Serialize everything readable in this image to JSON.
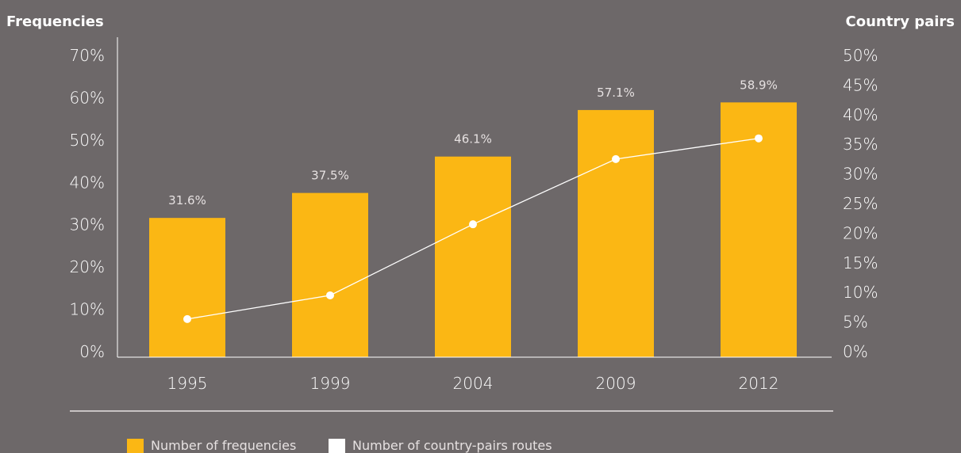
{
  "chart_data": {
    "type": "bar",
    "categories": [
      "1995",
      "1999",
      "2004",
      "2009",
      "2012"
    ],
    "series": [
      {
        "name": "Number of frequencies",
        "type": "bar",
        "axis": "left",
        "values": [
          31.6,
          37.5,
          46.1,
          57.1,
          58.9
        ],
        "labels": [
          "31.6%",
          "37.5%",
          "46.1%",
          "57.1%",
          "58.9%"
        ],
        "color": "#fbb714"
      },
      {
        "name": "Number of country-pairs routes",
        "type": "line",
        "axis": "right",
        "values": [
          5.5,
          9.5,
          21.5,
          32.5,
          36.0
        ],
        "color": "#ffffff"
      }
    ],
    "y_left": {
      "label": "Frequencies",
      "range": [
        0,
        70
      ],
      "ticks": [
        0,
        10,
        20,
        30,
        40,
        50,
        60,
        70
      ],
      "tick_labels": [
        "0%",
        "10%",
        "20%",
        "30%",
        "40%",
        "50%",
        "60%",
        "70%"
      ]
    },
    "y_right": {
      "label": "Country pairs",
      "range": [
        0,
        50
      ],
      "ticks": [
        0,
        5,
        10,
        15,
        20,
        25,
        30,
        35,
        40,
        45,
        50
      ],
      "tick_labels": [
        "0%",
        "5%",
        "10%",
        "15%",
        "20%",
        "25%",
        "30%",
        "35%",
        "40%",
        "45%",
        "50%"
      ]
    },
    "grid": false,
    "legend_position": "bottom-left"
  },
  "colors": {
    "background": "#6d6869",
    "bar": "#fbb714",
    "line": "#ffffff",
    "axis": "#ffffff"
  }
}
